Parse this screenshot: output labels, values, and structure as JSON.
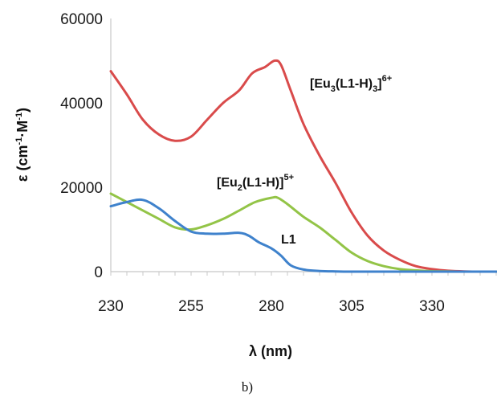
{
  "chart_data": {
    "type": "line",
    "xlabel": "λ (nm)",
    "ylabel": "ε (cm⁻¹·M⁻¹)",
    "xlim": [
      230,
      350
    ],
    "ylim": [
      0,
      60000
    ],
    "x_ticks": [
      "230",
      "255",
      "280",
      "305",
      "330"
    ],
    "y_ticks": [
      "0",
      "20000",
      "40000",
      "60000"
    ],
    "caption": "b)",
    "grid": false,
    "series": [
      {
        "name": "[Eu3(L1-H)3]6+",
        "color": "#d94b4b",
        "x": [
          230,
          235,
          240,
          245,
          250,
          255,
          260,
          265,
          270,
          274,
          278,
          281,
          283,
          286,
          290,
          295,
          300,
          305,
          310,
          315,
          320,
          325,
          330,
          335,
          340,
          345,
          350
        ],
        "y": [
          47500,
          42000,
          36000,
          32500,
          31000,
          32000,
          36000,
          40000,
          43000,
          47000,
          48500,
          50000,
          49000,
          43000,
          35000,
          27500,
          21000,
          14000,
          8500,
          5000,
          2800,
          1300,
          600,
          200,
          50,
          0,
          0
        ]
      },
      {
        "name": "[Eu2(L1-H)]5+",
        "color": "#93c447",
        "x": [
          230,
          235,
          240,
          245,
          250,
          255,
          260,
          265,
          270,
          275,
          280,
          282,
          285,
          290,
          295,
          300,
          305,
          310,
          315,
          320,
          325,
          330,
          335,
          340,
          345,
          350
        ],
        "y": [
          18500,
          16500,
          14500,
          12500,
          10500,
          10000,
          11000,
          12500,
          14500,
          16500,
          17500,
          17500,
          16000,
          13000,
          10500,
          7500,
          4500,
          2500,
          1300,
          600,
          300,
          100,
          50,
          0,
          0,
          0
        ]
      },
      {
        "name": "L1",
        "color": "#3f82cc",
        "x": [
          230,
          235,
          240,
          245,
          250,
          255,
          260,
          265,
          270,
          273,
          276,
          280,
          283,
          286,
          290,
          295,
          300,
          305,
          310,
          320,
          330,
          340,
          350
        ],
        "y": [
          15500,
          16500,
          17000,
          15000,
          12000,
          9500,
          9000,
          9000,
          9200,
          8500,
          7000,
          5500,
          3800,
          1500,
          500,
          150,
          50,
          0,
          0,
          0,
          0,
          0,
          0
        ]
      }
    ]
  }
}
